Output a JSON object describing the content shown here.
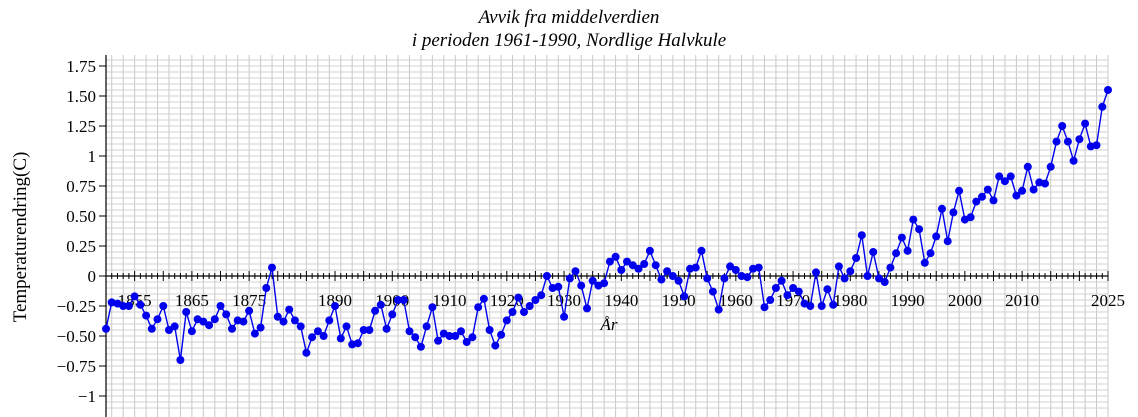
{
  "chart_data": {
    "type": "line",
    "title": [
      "Avvik fra middelverdien",
      "i perioden 1961-1990, Nordlige Halvkule"
    ],
    "xlabel": "År",
    "ylabel": "Temperaturendring(C)",
    "xlim": [
      1850,
      2025
    ],
    "ylim": [
      -1.1,
      1.8
    ],
    "grid": true,
    "x_ticks": [
      1855,
      1865,
      1875,
      1890,
      1900,
      1910,
      1920,
      1930,
      1940,
      1950,
      1960,
      1970,
      1980,
      1990,
      2000,
      2010,
      2025
    ],
    "y_ticks": [
      {
        "value": 1.75,
        "label": "1.75"
      },
      {
        "value": 1.5,
        "label": "1.50"
      },
      {
        "value": 1.25,
        "label": "1.25"
      },
      {
        "value": 1.0,
        "label": "1"
      },
      {
        "value": 0.75,
        "label": "0.75"
      },
      {
        "value": 0.5,
        "label": "0.50"
      },
      {
        "value": 0.25,
        "label": "0.25"
      },
      {
        "value": 0.0,
        "label": "0"
      },
      {
        "value": -0.25,
        "label": "−0.25"
      },
      {
        "value": -0.5,
        "label": "−0.50"
      },
      {
        "value": -0.75,
        "label": "−0.75"
      },
      {
        "value": -1.0,
        "label": "−1"
      }
    ],
    "series_color": "#0000ee",
    "series": [
      {
        "start_year": 1850,
        "values": [
          -0.44,
          -0.22,
          -0.23,
          -0.25,
          -0.25,
          -0.17,
          -0.24,
          -0.33,
          -0.44,
          -0.36,
          -0.25,
          -0.45,
          -0.42,
          -0.7,
          -0.3,
          -0.46,
          -0.36,
          -0.38,
          -0.41,
          -0.36,
          -0.25,
          -0.32,
          -0.44,
          -0.37,
          -0.38,
          -0.29,
          -0.48,
          -0.43,
          -0.1,
          0.07,
          -0.34,
          -0.38,
          -0.28,
          -0.37,
          -0.42,
          -0.64,
          -0.51,
          -0.46,
          -0.5,
          -0.37,
          -0.25,
          -0.52,
          -0.42,
          -0.57,
          -0.56,
          -0.45,
          -0.45,
          -0.29,
          -0.24,
          -0.44,
          -0.32,
          -0.2,
          -0.2,
          -0.46,
          -0.51,
          -0.59,
          -0.42,
          -0.26,
          -0.54,
          -0.48,
          -0.5,
          -0.5,
          -0.46,
          -0.55,
          -0.51,
          -0.26,
          -0.19,
          -0.45,
          -0.58,
          -0.49,
          -0.37,
          -0.3,
          -0.18,
          -0.3,
          -0.25,
          -0.2,
          -0.16,
          0.0,
          -0.1,
          -0.09,
          -0.34,
          -0.02,
          0.04,
          -0.08,
          -0.27,
          -0.04,
          -0.08,
          -0.06,
          0.12,
          0.16,
          0.05,
          0.12,
          0.09,
          0.06,
          0.1,
          0.21,
          0.09,
          -0.03,
          0.04,
          0.0,
          -0.04,
          -0.17,
          0.06,
          0.07,
          0.21,
          -0.02,
          -0.13,
          -0.28,
          -0.02,
          0.08,
          0.05,
          0.0,
          -0.01,
          0.06,
          0.07,
          -0.26,
          -0.2,
          -0.1,
          -0.04,
          -0.16,
          -0.1,
          -0.13,
          -0.23,
          -0.25,
          0.03,
          -0.25,
          -0.11,
          -0.24,
          0.08,
          -0.02,
          0.04,
          0.15,
          0.34,
          0.0,
          0.2,
          -0.02,
          -0.05,
          0.07,
          0.19,
          0.32,
          0.21,
          0.47,
          0.39,
          0.11,
          0.19,
          0.33,
          0.56,
          0.29,
          0.53,
          0.71,
          0.47,
          0.49,
          0.62,
          0.66,
          0.72,
          0.63,
          0.83,
          0.79,
          0.83,
          0.67,
          0.71,
          0.91,
          0.72,
          0.78,
          0.77,
          0.91,
          1.12,
          1.25,
          1.12,
          0.96,
          1.14,
          1.27,
          1.08,
          1.09,
          1.41,
          1.55
        ]
      }
    ]
  }
}
